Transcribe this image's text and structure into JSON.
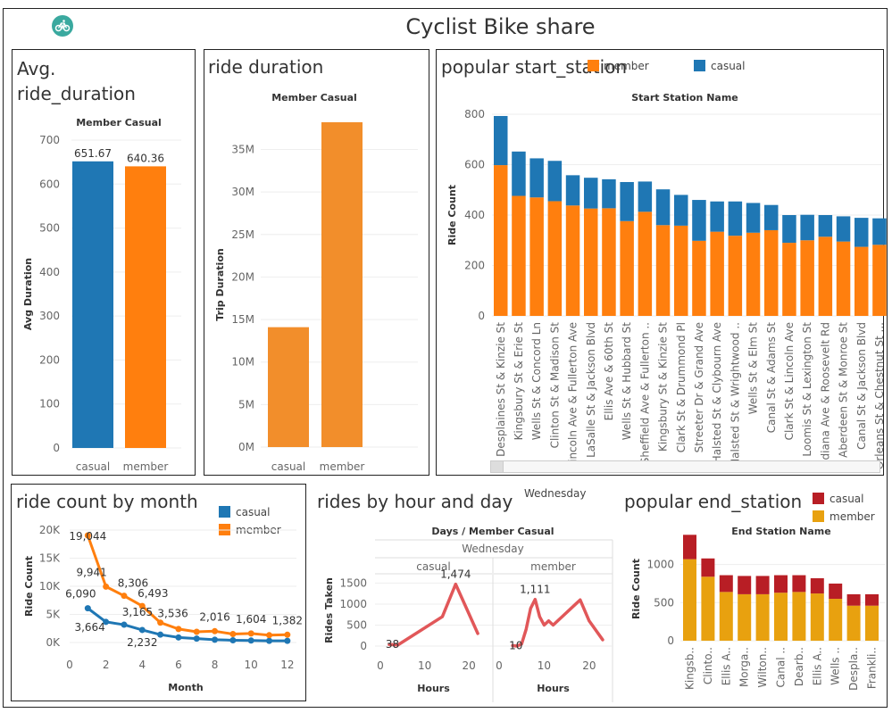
{
  "title": "Cyclist Bike share",
  "colors": {
    "casual": "#1f77b4",
    "member": "#ff7f0e",
    "trip": "#f28e2b",
    "line": "#e15759",
    "end_casual": "#b81e25",
    "end_member": "#e8a10f",
    "logo": "#3aa99f"
  },
  "logo_icon": "bicycle-icon",
  "chart_data": [
    {
      "id": "avg_duration",
      "type": "bar",
      "title": "Avg. ride_duration",
      "header": "Member Casual",
      "categories": [
        "casual",
        "member"
      ],
      "values": [
        651.67,
        640.36
      ],
      "value_labels": [
        "651.67",
        "640.36"
      ],
      "ylabel": "Avg Duration",
      "ylim": [
        0,
        700
      ],
      "yticks": [
        "0",
        "100",
        "200",
        "300",
        "400",
        "500",
        "600",
        "700"
      ]
    },
    {
      "id": "trip_duration",
      "type": "bar",
      "title": "ride duration",
      "header": "Member Casual",
      "categories": [
        "casual",
        "member"
      ],
      "values": [
        14.1,
        38.2
      ],
      "ylabel": "Trip Duration",
      "ylim": [
        0,
        38.2
      ],
      "yticks": [
        0,
        5,
        10,
        15,
        20,
        25,
        30,
        35
      ],
      "ytick_labels": [
        "0M",
        "5M",
        "10M",
        "15M",
        "20M",
        "25M",
        "30M",
        "35M"
      ]
    },
    {
      "id": "start_station",
      "type": "bar",
      "stacked": true,
      "title": "popular start_station",
      "header": "Start Station Name",
      "ylabel": "Ride Count",
      "ylim": [
        0,
        800
      ],
      "yticks": [
        "0",
        "200",
        "400",
        "600",
        "800"
      ],
      "legend": "top",
      "categories": [
        "Desplaines St & Kinzie St",
        "Kingsbury St & Erie St",
        "Wells St & Concord Ln",
        "Clinton St & Madison St",
        "Lincoln Ave & Fullerton Ave",
        "LaSalle St & Jackson Blvd",
        "Ellis Ave & 60th St",
        "Wells St & Hubbard St",
        "Sheffield Ave & Fullerton ..",
        "Kingsbury St & Kinzie St",
        "Clark St & Drummond Pl",
        "Streeter Dr & Grand Ave",
        "Halsted St & Clybourn Ave",
        "Halsted St & Wrightwood ..",
        "Wells St & Elm St",
        "Canal St & Adams St",
        "Clark St & Lincoln Ave",
        "Loomis St & Lexington St",
        "Indiana Ave & Roosevelt Rd",
        "Aberdeen St & Monroe St",
        "Canal St & Jackson Blvd",
        "Orleans St & Chestnut St ..."
      ],
      "series": [
        {
          "name": "member",
          "values": [
            598,
            476,
            470,
            455,
            438,
            426,
            427,
            376,
            413,
            360,
            358,
            298,
            334,
            318,
            330,
            340,
            290,
            300,
            314,
            295,
            274,
            282
          ]
        },
        {
          "name": "casual",
          "values": [
            195,
            176,
            155,
            160,
            120,
            122,
            115,
            155,
            120,
            142,
            122,
            162,
            120,
            136,
            118,
            100,
            110,
            101,
            86,
            100,
            115,
            105
          ]
        }
      ]
    },
    {
      "id": "month",
      "type": "line",
      "title": "ride count by month",
      "xlabel": "Month",
      "ylabel": "Ride Count",
      "xlim": [
        0,
        12.5
      ],
      "xticks": [
        "0",
        "2",
        "4",
        "6",
        "8",
        "10",
        "12"
      ],
      "ylim": [
        0,
        20000
      ],
      "yticks": [
        0,
        5000,
        10000,
        15000,
        20000
      ],
      "ytick_labels": [
        "0K",
        "5K",
        "10K",
        "15K",
        "20K"
      ],
      "legend": "top-right",
      "x": [
        1,
        2,
        3,
        4,
        5,
        6,
        7,
        8,
        9,
        10,
        11,
        12
      ],
      "series": [
        {
          "name": "casual",
          "values": [
            6090,
            3664,
            3165,
            2232,
            1400,
            900,
            700,
            500,
            400,
            350,
            300,
            300
          ],
          "labels": [
            "6,090",
            "3,664",
            "3,165",
            "2,232",
            "",
            "",
            "",
            "",
            "",
            "",
            "",
            ""
          ]
        },
        {
          "name": "member",
          "values": [
            19044,
            9941,
            8306,
            6493,
            3536,
            2400,
            1900,
            2016,
            1500,
            1604,
            1300,
            1382
          ],
          "labels": [
            "19,044",
            "9,941",
            "8,306",
            "6,493",
            "3,536",
            "",
            "",
            "2,016",
            "",
            "1,604",
            "",
            "1,382"
          ]
        }
      ]
    },
    {
      "id": "hour_day",
      "type": "line",
      "title": "rides by hour and day",
      "filter_label": "Wednesday",
      "header": "Days  /  Member Casual",
      "subheader": "Wednesday",
      "ylabel": "Rides Taken",
      "ylim": [
        0,
        1700
      ],
      "yticks": [
        "0",
        "500",
        "1000",
        "1500"
      ],
      "xlim": [
        0,
        24
      ],
      "xticks": [
        "0",
        "10",
        "20"
      ],
      "panels": [
        {
          "name": "casual",
          "xlabel": "Hours",
          "x": [
            2,
            4,
            14,
            17,
            22
          ],
          "y": [
            38,
            30,
            700,
            1474,
            300
          ],
          "labels": [
            {
              "x": 2,
              "y": 38,
              "text": "38"
            },
            {
              "x": 17,
              "y": 1474,
              "text": "1,474"
            }
          ]
        },
        {
          "name": "member",
          "xlabel": "Hours",
          "x": [
            3,
            4,
            5,
            6,
            7,
            8,
            9,
            10,
            11,
            12,
            13,
            15,
            17,
            18,
            20,
            23
          ],
          "y": [
            10,
            0,
            50,
            400,
            900,
            1111,
            700,
            500,
            600,
            500,
            600,
            800,
            1000,
            1100,
            600,
            150
          ],
          "labels": [
            {
              "x": 3,
              "y": 10,
              "text": "10"
            },
            {
              "x": 8,
              "y": 1111,
              "text": "1,111"
            }
          ]
        }
      ]
    },
    {
      "id": "end_station",
      "type": "bar",
      "stacked": true,
      "title": "popular end_station",
      "header": "End Station Name",
      "ylabel": "Ride Count",
      "ylim": [
        0,
        1300
      ],
      "yticks": [
        "0",
        "500",
        "1000"
      ],
      "legend": "top-right",
      "categories": [
        "Kingsb..",
        "Clinto..",
        "Ellis A..",
        "Morga..",
        "Wilton..",
        "Canal ..",
        "Dearb..",
        "Ellis A..",
        "Wells ..",
        "Despla..",
        "Frankli.."
      ],
      "series": [
        {
          "name": "casual",
          "values": [
            320,
            240,
            220,
            240,
            240,
            230,
            220,
            200,
            200,
            150,
            150
          ]
        },
        {
          "name": "member",
          "values": [
            1070,
            840,
            640,
            610,
            610,
            630,
            640,
            620,
            550,
            460,
            460
          ]
        }
      ]
    }
  ]
}
